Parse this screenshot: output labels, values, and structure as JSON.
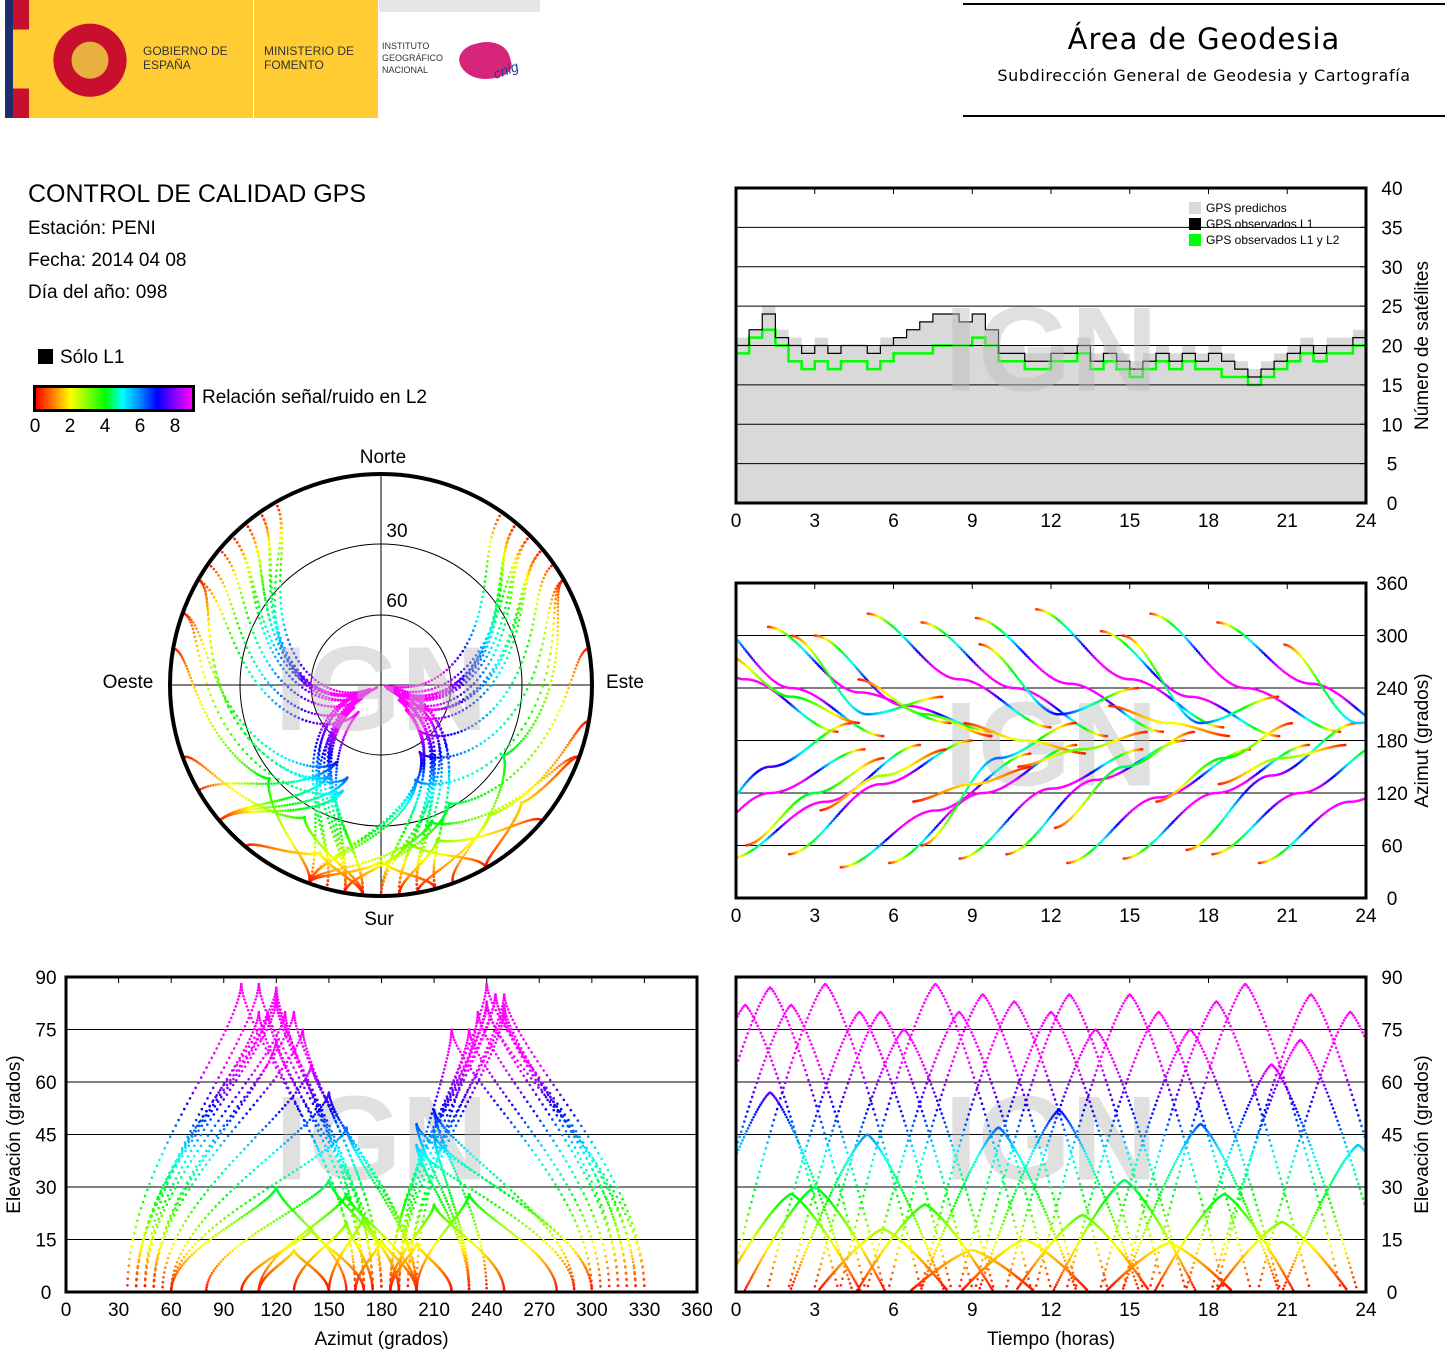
{
  "header": {
    "logo": {
      "gov": "GOBIERNO DE ESPAÑA",
      "ministry": "MINISTERIO DE FOMENTO",
      "institute": "INSTITUTO GEOGRÁFICO NACIONAL",
      "cnig": "cnig"
    },
    "title": "Área de Geodesia",
    "subtitle": "Subdirección General de Geodesia y Cartografía"
  },
  "report": {
    "title": "CONTROL DE CALIDAD GPS",
    "station": "Estación: PENI",
    "date": "Fecha: 2014 04 08",
    "doy": "Día del año: 098"
  },
  "legend": {
    "l1_only": "Sólo L1",
    "colorbar_label": "Relación señal/ruido en L2",
    "colorbar_ticks": [
      "0",
      "2",
      "4",
      "6",
      "8"
    ]
  },
  "watermark": "IGN",
  "colors": {
    "predicted": "#d9d9d9",
    "l1": "#000000",
    "l1l2": "#00ff00"
  },
  "chart_data": [
    {
      "id": "sat_count",
      "type": "line",
      "xlabel": "",
      "ylabel": "Número de satélites",
      "xlim": [
        0,
        24
      ],
      "ylim": [
        0,
        40
      ],
      "xticks": [
        "0",
        "3",
        "6",
        "9",
        "12",
        "15",
        "18",
        "21",
        "24"
      ],
      "yticks": [
        "0",
        "5",
        "10",
        "15",
        "20",
        "25",
        "30",
        "35",
        "40"
      ],
      "legend_position": "top-right",
      "legend": [
        "GPS predichos",
        "GPS observados L1",
        "GPS observados L1 y L2"
      ],
      "x": [
        0,
        0.5,
        1,
        1.5,
        2,
        2.5,
        3,
        3.5,
        4,
        4.5,
        5,
        5.5,
        6,
        6.5,
        7,
        7.5,
        8,
        8.5,
        9,
        9.5,
        10,
        10.5,
        11,
        11.5,
        12,
        12.5,
        13,
        13.5,
        14,
        14.5,
        15,
        15.5,
        16,
        16.5,
        17,
        17.5,
        18,
        18.5,
        19,
        19.5,
        20,
        20.5,
        21,
        21.5,
        22,
        22.5,
        23,
        23.5,
        24
      ],
      "series": [
        {
          "name": "GPS predichos",
          "values": [
            21,
            22,
            25,
            22,
            21,
            20,
            21,
            20,
            20,
            20,
            20,
            21,
            21,
            22,
            23,
            24,
            24,
            23,
            24,
            22,
            20,
            20,
            19,
            19,
            20,
            20,
            21,
            19,
            20,
            19,
            18,
            19,
            20,
            19,
            20,
            19,
            20,
            19,
            18,
            17,
            18,
            19,
            20,
            21,
            20,
            21,
            21,
            22,
            21
          ]
        },
        {
          "name": "GPS observados L1",
          "values": [
            20,
            22,
            24,
            21,
            20,
            19,
            20,
            19,
            20,
            20,
            19,
            20,
            21,
            22,
            23,
            24,
            24,
            23,
            24,
            22,
            19,
            19,
            18,
            18,
            19,
            19,
            20,
            18,
            19,
            18,
            17,
            18,
            19,
            18,
            19,
            18,
            19,
            18,
            17,
            16,
            17,
            18,
            19,
            20,
            19,
            20,
            20,
            21,
            20
          ]
        },
        {
          "name": "GPS observados L1 y L2",
          "values": [
            19,
            21,
            22,
            20,
            18,
            17,
            18,
            17,
            18,
            18,
            17,
            18,
            19,
            19,
            19,
            20,
            20,
            20,
            21,
            20,
            18,
            18,
            17,
            17,
            18,
            18,
            19,
            17,
            18,
            17,
            16,
            17,
            18,
            17,
            18,
            17,
            17,
            16,
            16,
            15,
            16,
            17,
            18,
            19,
            18,
            19,
            19,
            20,
            19
          ]
        }
      ]
    },
    {
      "id": "azimuth_time",
      "type": "scatter",
      "xlabel": "",
      "ylabel": "Azimut (grados)",
      "xlim": [
        0,
        24
      ],
      "ylim": [
        0,
        360
      ],
      "xticks": [
        "0",
        "3",
        "6",
        "9",
        "12",
        "15",
        "18",
        "21",
        "24"
      ],
      "yticks": [
        "0",
        "60",
        "120",
        "180",
        "240",
        "300",
        "360"
      ]
    },
    {
      "id": "elevation_azimuth",
      "type": "scatter",
      "xlabel": "Azimut (grados)",
      "ylabel": "Elevación (grados)",
      "xlim": [
        0,
        360
      ],
      "ylim": [
        0,
        90
      ],
      "xticks": [
        "0",
        "30",
        "60",
        "90",
        "120",
        "150",
        "180",
        "210",
        "240",
        "270",
        "300",
        "330",
        "360"
      ],
      "yticks": [
        "0",
        "15",
        "30",
        "45",
        "60",
        "75",
        "90"
      ]
    },
    {
      "id": "elevation_time",
      "type": "scatter",
      "xlabel": "Tiempo (horas)",
      "ylabel": "Elevación (grados)",
      "xlim": [
        0,
        24
      ],
      "ylim": [
        0,
        90
      ],
      "xticks": [
        "0",
        "3",
        "6",
        "9",
        "12",
        "15",
        "18",
        "21",
        "24"
      ],
      "yticks": [
        "0",
        "15",
        "30",
        "45",
        "60",
        "75",
        "90"
      ]
    },
    {
      "id": "skyplot",
      "type": "scatter",
      "directions": {
        "north": "Norte",
        "south": "Sur",
        "west": "Oeste",
        "east": "Este"
      },
      "ring_labels": [
        "30",
        "60"
      ]
    }
  ],
  "passes_fields": [
    "peak_time_h",
    "peak_elevation_deg",
    "rise_az",
    "peak_az",
    "set_az"
  ],
  "passes": [
    [
      0.35,
      82,
      320,
      250,
      190
    ],
    [
      1.3,
      87,
      40,
      120,
      170
    ],
    [
      2.1,
      82,
      330,
      240,
      185
    ],
    [
      3.4,
      88,
      45,
      110,
      175
    ],
    [
      4.7,
      80,
      310,
      235,
      200
    ],
    [
      5.5,
      80,
      50,
      130,
      180
    ],
    [
      6.4,
      75,
      300,
      220,
      190
    ],
    [
      7.6,
      88,
      35,
      100,
      165
    ],
    [
      8.5,
      80,
      325,
      250,
      195
    ],
    [
      9.4,
      85,
      40,
      120,
      175
    ],
    [
      10.6,
      83,
      315,
      240,
      185
    ],
    [
      12,
      80,
      45,
      125,
      170
    ],
    [
      12.7,
      85,
      320,
      245,
      190
    ],
    [
      13.7,
      75,
      50,
      135,
      180
    ],
    [
      15,
      85,
      330,
      250,
      195
    ],
    [
      16.1,
      80,
      40,
      115,
      170
    ],
    [
      17.3,
      75,
      305,
      230,
      185
    ],
    [
      18.3,
      83,
      45,
      120,
      175
    ],
    [
      19.4,
      88,
      325,
      240,
      190
    ],
    [
      20.4,
      65,
      55,
      140,
      200
    ],
    [
      21.9,
      85,
      315,
      245,
      185
    ],
    [
      23.4,
      80,
      40,
      110,
      165
    ],
    [
      1.3,
      57,
      60,
      150,
      200
    ],
    [
      5.0,
      45,
      300,
      210,
      230
    ],
    [
      10,
      47,
      60,
      160,
      200
    ],
    [
      12.3,
      52,
      290,
      210,
      240
    ],
    [
      14.8,
      32,
      80,
      150,
      190
    ],
    [
      17.7,
      48,
      300,
      200,
      230
    ],
    [
      18.6,
      28,
      110,
      160,
      200
    ],
    [
      21.5,
      72,
      50,
      120,
      180
    ],
    [
      23.7,
      42,
      290,
      200,
      230
    ],
    [
      2.1,
      28,
      280,
      230,
      200
    ],
    [
      3.0,
      30,
      60,
      120,
      160
    ],
    [
      5.6,
      18,
      100,
      140,
      170
    ],
    [
      7.2,
      25,
      250,
      210,
      185
    ],
    [
      16.5,
      14,
      220,
      200,
      185
    ],
    [
      20.8,
      20,
      130,
      160,
      175
    ],
    [
      11.0,
      15,
      200,
      180,
      165
    ],
    [
      13.2,
      22,
      150,
      170,
      190
    ],
    [
      9.0,
      12,
      110,
      130,
      150
    ]
  ]
}
